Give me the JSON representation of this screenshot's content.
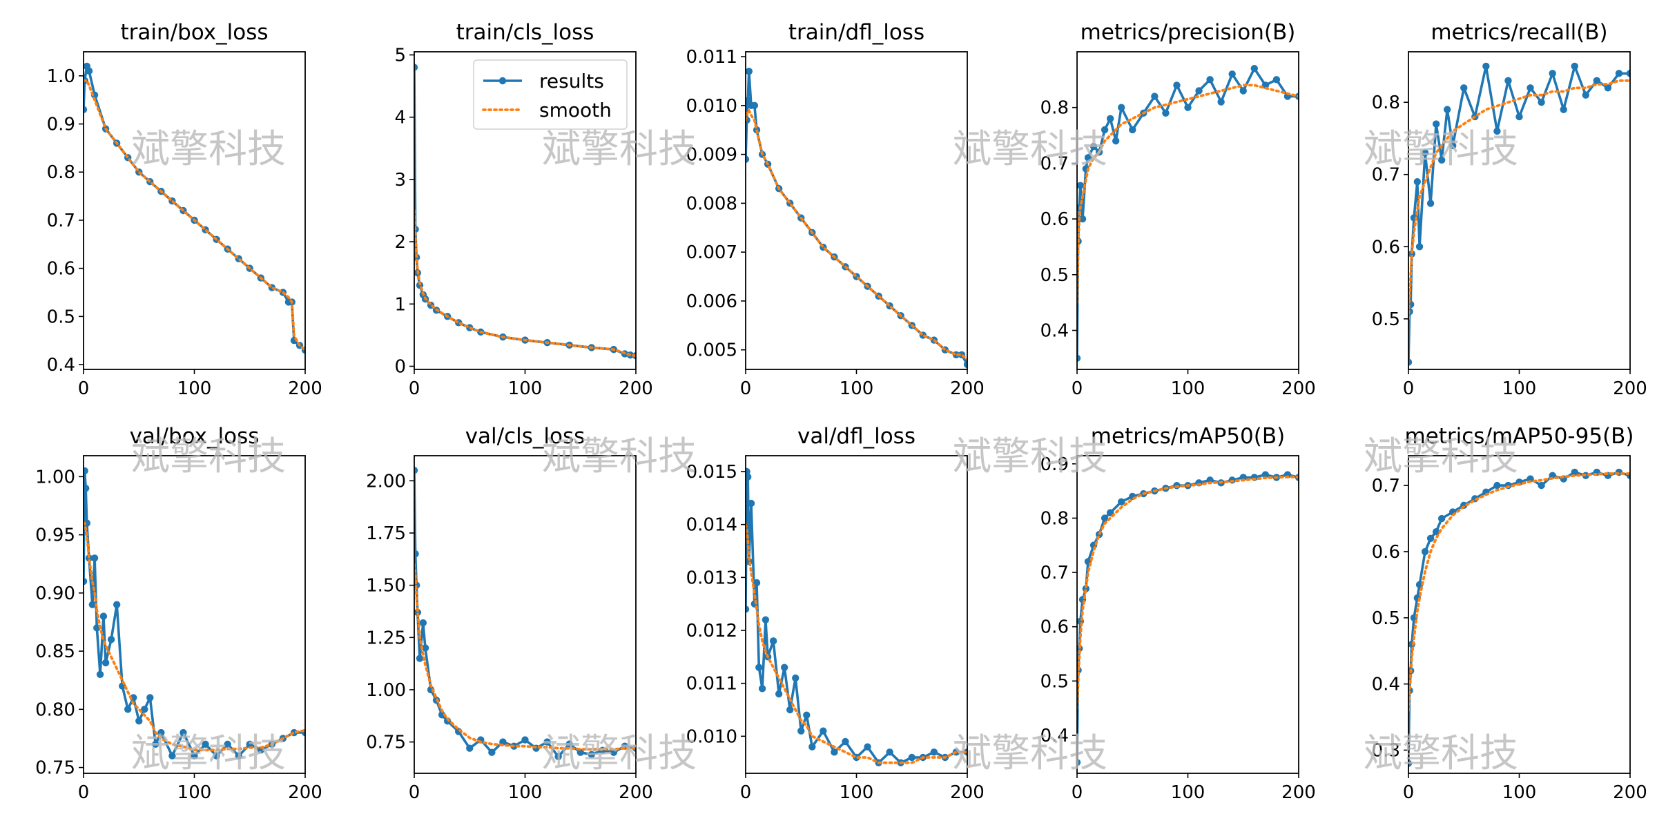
{
  "figure": {
    "background": "#ffffff",
    "results_color": "#1f77b4",
    "smooth_color": "#ff7f0e"
  },
  "legend": {
    "results_label": "results",
    "smooth_label": "smooth"
  },
  "watermark_text": "斌擎科技",
  "chart_data": [
    {
      "type": "line",
      "title": "train/box_loss",
      "xlim": [
        0,
        200
      ],
      "ylim": [
        0.39,
        1.05
      ],
      "xticks": [
        "0",
        "100",
        "200"
      ],
      "yticks": [
        "0.4",
        "0.5",
        "0.6",
        "0.7",
        "0.8",
        "0.9",
        "1.0"
      ],
      "ytick_values": [
        0.4,
        0.5,
        0.6,
        0.7,
        0.8,
        0.9,
        1.0
      ],
      "x": [
        0,
        1,
        3,
        5,
        10,
        20,
        30,
        40,
        50,
        60,
        70,
        80,
        90,
        100,
        110,
        120,
        130,
        140,
        150,
        160,
        170,
        180,
        185,
        188,
        190,
        195,
        200
      ],
      "results": [
        0.93,
        0.99,
        1.02,
        1.01,
        0.96,
        0.89,
        0.86,
        0.83,
        0.8,
        0.78,
        0.76,
        0.74,
        0.72,
        0.7,
        0.68,
        0.66,
        0.64,
        0.62,
        0.6,
        0.58,
        0.56,
        0.55,
        0.53,
        0.53,
        0.45,
        0.44,
        0.43
      ],
      "smooth": [
        0.99,
        0.99,
        0.99,
        0.98,
        0.95,
        0.89,
        0.86,
        0.83,
        0.8,
        0.78,
        0.76,
        0.74,
        0.72,
        0.7,
        0.68,
        0.66,
        0.64,
        0.62,
        0.6,
        0.58,
        0.56,
        0.55,
        0.54,
        0.53,
        0.46,
        0.44,
        0.43
      ]
    },
    {
      "type": "line",
      "title": "train/cls_loss",
      "xlim": [
        0,
        200
      ],
      "ylim": [
        -0.05,
        5.05
      ],
      "legend": true,
      "xticks": [
        "0",
        "100",
        "200"
      ],
      "yticks": [
        "0",
        "1",
        "2",
        "3",
        "4",
        "5"
      ],
      "ytick_values": [
        0,
        1,
        2,
        3,
        4,
        5
      ],
      "x": [
        0,
        1,
        2,
        3,
        5,
        8,
        10,
        15,
        20,
        30,
        40,
        50,
        60,
        80,
        100,
        120,
        140,
        160,
        180,
        190,
        195,
        200
      ],
      "results": [
        4.8,
        2.2,
        1.75,
        1.5,
        1.3,
        1.15,
        1.08,
        0.98,
        0.9,
        0.8,
        0.7,
        0.62,
        0.55,
        0.47,
        0.42,
        0.38,
        0.34,
        0.3,
        0.27,
        0.2,
        0.18,
        0.17
      ],
      "smooth": [
        2.5,
        2.1,
        1.8,
        1.55,
        1.33,
        1.17,
        1.09,
        0.99,
        0.91,
        0.8,
        0.7,
        0.62,
        0.55,
        0.47,
        0.42,
        0.38,
        0.34,
        0.3,
        0.27,
        0.21,
        0.18,
        0.17
      ]
    },
    {
      "type": "line",
      "title": "train/dfl_loss",
      "xlim": [
        0,
        200
      ],
      "ylim": [
        0.0046,
        0.0111
      ],
      "xticks": [
        "0",
        "100",
        "200"
      ],
      "yticks": [
        "0.005",
        "0.006",
        "0.007",
        "0.008",
        "0.009",
        "0.010",
        "0.011"
      ],
      "ytick_values": [
        0.005,
        0.006,
        0.007,
        0.008,
        0.009,
        0.01,
        0.011
      ],
      "x": [
        0,
        1,
        2,
        3,
        5,
        8,
        10,
        15,
        20,
        30,
        40,
        50,
        60,
        70,
        80,
        90,
        100,
        110,
        120,
        130,
        140,
        150,
        160,
        170,
        180,
        190,
        195,
        200
      ],
      "results": [
        0.0089,
        0.0097,
        0.0101,
        0.0107,
        0.01,
        0.01,
        0.0095,
        0.009,
        0.0088,
        0.0083,
        0.008,
        0.0077,
        0.0074,
        0.0071,
        0.0069,
        0.0067,
        0.0065,
        0.0063,
        0.0061,
        0.0059,
        0.0057,
        0.0055,
        0.0053,
        0.0052,
        0.005,
        0.0049,
        0.0049,
        0.0047
      ],
      "smooth": [
        0.0097,
        0.0098,
        0.0099,
        0.0099,
        0.0098,
        0.0097,
        0.0095,
        0.009,
        0.0088,
        0.0083,
        0.008,
        0.0077,
        0.0074,
        0.0071,
        0.0069,
        0.0067,
        0.0065,
        0.0063,
        0.0061,
        0.0059,
        0.0057,
        0.0055,
        0.0053,
        0.0052,
        0.005,
        0.0049,
        0.0049,
        0.0048
      ]
    },
    {
      "type": "line",
      "title": "metrics/precision(B)",
      "xlim": [
        0,
        200
      ],
      "ylim": [
        0.33,
        0.9
      ],
      "xticks": [
        "0",
        "100",
        "200"
      ],
      "yticks": [
        "0.4",
        "0.5",
        "0.6",
        "0.7",
        "0.8"
      ],
      "ytick_values": [
        0.4,
        0.5,
        0.6,
        0.7,
        0.8
      ],
      "x": [
        0,
        1,
        2,
        3,
        5,
        8,
        10,
        15,
        20,
        25,
        30,
        35,
        40,
        50,
        60,
        70,
        80,
        90,
        100,
        110,
        120,
        130,
        140,
        150,
        160,
        170,
        180,
        190,
        200
      ],
      "results": [
        0.35,
        0.56,
        0.62,
        0.66,
        0.6,
        0.69,
        0.71,
        0.73,
        0.72,
        0.76,
        0.78,
        0.74,
        0.8,
        0.76,
        0.79,
        0.82,
        0.79,
        0.84,
        0.8,
        0.83,
        0.85,
        0.81,
        0.86,
        0.83,
        0.87,
        0.84,
        0.85,
        0.82,
        0.82
      ],
      "smooth": [
        0.45,
        0.55,
        0.6,
        0.62,
        0.64,
        0.67,
        0.69,
        0.71,
        0.72,
        0.74,
        0.75,
        0.76,
        0.77,
        0.78,
        0.79,
        0.8,
        0.805,
        0.81,
        0.815,
        0.82,
        0.825,
        0.83,
        0.835,
        0.84,
        0.84,
        0.835,
        0.83,
        0.825,
        0.82
      ]
    },
    {
      "type": "line",
      "title": "metrics/recall(B)",
      "xlim": [
        0,
        200
      ],
      "ylim": [
        0.43,
        0.87
      ],
      "xticks": [
        "0",
        "100",
        "200"
      ],
      "yticks": [
        "0.5",
        "0.6",
        "0.7",
        "0.8"
      ],
      "ytick_values": [
        0.5,
        0.6,
        0.7,
        0.8
      ],
      "x": [
        0,
        1,
        2,
        3,
        5,
        8,
        10,
        15,
        20,
        25,
        30,
        35,
        40,
        50,
        60,
        70,
        80,
        90,
        100,
        110,
        120,
        130,
        140,
        150,
        160,
        170,
        180,
        190,
        200
      ],
      "results": [
        0.44,
        0.51,
        0.52,
        0.59,
        0.64,
        0.69,
        0.6,
        0.73,
        0.66,
        0.77,
        0.72,
        0.79,
        0.74,
        0.82,
        0.78,
        0.85,
        0.76,
        0.83,
        0.78,
        0.82,
        0.8,
        0.84,
        0.79,
        0.85,
        0.81,
        0.83,
        0.82,
        0.84,
        0.84
      ],
      "smooth": [
        0.5,
        0.53,
        0.56,
        0.59,
        0.62,
        0.65,
        0.67,
        0.69,
        0.71,
        0.73,
        0.74,
        0.75,
        0.76,
        0.77,
        0.78,
        0.79,
        0.795,
        0.8,
        0.805,
        0.81,
        0.81,
        0.815,
        0.815,
        0.82,
        0.82,
        0.825,
        0.825,
        0.83,
        0.83
      ]
    },
    {
      "type": "line",
      "title": "val/box_loss",
      "xlim": [
        0,
        200
      ],
      "ylim": [
        0.745,
        1.018
      ],
      "xticks": [
        "0",
        "100",
        "200"
      ],
      "yticks": [
        "0.75",
        "0.80",
        "0.85",
        "0.90",
        "0.95",
        "1.00"
      ],
      "ytick_values": [
        0.75,
        0.8,
        0.85,
        0.9,
        0.95,
        1.0
      ],
      "x": [
        0,
        1,
        2,
        3,
        5,
        8,
        10,
        12,
        15,
        18,
        20,
        25,
        30,
        35,
        40,
        45,
        50,
        55,
        60,
        65,
        70,
        80,
        90,
        100,
        110,
        120,
        130,
        140,
        150,
        160,
        170,
        180,
        190,
        200
      ],
      "results": [
        0.91,
        1.005,
        0.99,
        0.96,
        0.93,
        0.89,
        0.93,
        0.87,
        0.83,
        0.88,
        0.84,
        0.86,
        0.89,
        0.82,
        0.8,
        0.81,
        0.79,
        0.8,
        0.81,
        0.77,
        0.78,
        0.76,
        0.78,
        0.76,
        0.77,
        0.76,
        0.77,
        0.76,
        0.77,
        0.765,
        0.77,
        0.775,
        0.78,
        0.78
      ],
      "smooth": [
        0.96,
        0.96,
        0.955,
        0.95,
        0.93,
        0.91,
        0.9,
        0.885,
        0.87,
        0.86,
        0.855,
        0.845,
        0.835,
        0.825,
        0.815,
        0.805,
        0.8,
        0.795,
        0.79,
        0.78,
        0.775,
        0.77,
        0.768,
        0.765,
        0.765,
        0.765,
        0.766,
        0.766,
        0.767,
        0.767,
        0.77,
        0.775,
        0.78,
        0.782
      ]
    },
    {
      "type": "line",
      "title": "val/cls_loss",
      "xlim": [
        0,
        200
      ],
      "ylim": [
        0.6,
        2.12
      ],
      "xticks": [
        "0",
        "100",
        "200"
      ],
      "yticks": [
        "0.75",
        "1.00",
        "1.25",
        "1.50",
        "1.75",
        "2.00"
      ],
      "ytick_values": [
        0.75,
        1.0,
        1.25,
        1.5,
        1.75,
        2.0
      ],
      "x": [
        0,
        1,
        2,
        3,
        5,
        8,
        10,
        15,
        20,
        25,
        30,
        40,
        50,
        60,
        70,
        80,
        90,
        100,
        110,
        120,
        130,
        140,
        150,
        160,
        170,
        180,
        190,
        200
      ],
      "results": [
        2.05,
        1.65,
        1.5,
        1.37,
        1.15,
        1.32,
        1.2,
        1.0,
        0.95,
        0.88,
        0.85,
        0.8,
        0.72,
        0.76,
        0.7,
        0.75,
        0.73,
        0.76,
        0.72,
        0.75,
        0.68,
        0.74,
        0.7,
        0.69,
        0.71,
        0.7,
        0.73,
        0.72
      ],
      "smooth": [
        1.6,
        1.55,
        1.45,
        1.38,
        1.25,
        1.17,
        1.12,
        1.02,
        0.96,
        0.9,
        0.86,
        0.81,
        0.77,
        0.75,
        0.74,
        0.735,
        0.73,
        0.73,
        0.725,
        0.725,
        0.72,
        0.72,
        0.715,
        0.715,
        0.715,
        0.715,
        0.72,
        0.72
      ]
    },
    {
      "type": "line",
      "title": "val/dfl_loss",
      "xlim": [
        0,
        200
      ],
      "ylim": [
        0.0093,
        0.0153
      ],
      "xticks": [
        "0",
        "100",
        "200"
      ],
      "yticks": [
        "0.010",
        "0.011",
        "0.012",
        "0.013",
        "0.014",
        "0.015"
      ],
      "ytick_values": [
        0.01,
        0.011,
        0.012,
        0.013,
        0.014,
        0.015
      ],
      "x": [
        0,
        1,
        2,
        3,
        5,
        8,
        10,
        12,
        15,
        18,
        20,
        25,
        30,
        35,
        40,
        45,
        50,
        55,
        60,
        70,
        80,
        90,
        100,
        110,
        120,
        130,
        140,
        150,
        160,
        170,
        180,
        190,
        200
      ],
      "results": [
        0.0124,
        0.015,
        0.0149,
        0.0133,
        0.0144,
        0.0125,
        0.0129,
        0.0113,
        0.0109,
        0.0122,
        0.0115,
        0.0118,
        0.0108,
        0.0113,
        0.0105,
        0.0111,
        0.0101,
        0.0104,
        0.0098,
        0.0101,
        0.0097,
        0.0099,
        0.0096,
        0.0098,
        0.0095,
        0.0097,
        0.0095,
        0.0096,
        0.0096,
        0.0097,
        0.0096,
        0.0097,
        0.0097
      ],
      "smooth": [
        0.014,
        0.0139,
        0.0137,
        0.0134,
        0.0131,
        0.0127,
        0.0124,
        0.0121,
        0.0118,
        0.0116,
        0.0115,
        0.0113,
        0.0111,
        0.0109,
        0.0107,
        0.0105,
        0.0103,
        0.0102,
        0.01,
        0.0099,
        0.0098,
        0.0097,
        0.0096,
        0.0096,
        0.0095,
        0.0095,
        0.0095,
        0.0095,
        0.0096,
        0.0096,
        0.0096,
        0.0097,
        0.0097
      ]
    },
    {
      "type": "line",
      "title": "metrics/mAP50(B)",
      "xlim": [
        0,
        200
      ],
      "ylim": [
        0.33,
        0.915
      ],
      "xticks": [
        "0",
        "100",
        "200"
      ],
      "yticks": [
        "0.4",
        "0.5",
        "0.6",
        "0.7",
        "0.8",
        "0.9"
      ],
      "ytick_values": [
        0.4,
        0.5,
        0.6,
        0.7,
        0.8,
        0.9
      ],
      "x": [
        0,
        1,
        2,
        3,
        5,
        8,
        10,
        15,
        20,
        25,
        30,
        40,
        50,
        60,
        70,
        80,
        90,
        100,
        110,
        120,
        130,
        140,
        150,
        160,
        170,
        180,
        190,
        200
      ],
      "results": [
        0.35,
        0.52,
        0.56,
        0.61,
        0.65,
        0.67,
        0.72,
        0.75,
        0.77,
        0.8,
        0.81,
        0.83,
        0.84,
        0.845,
        0.85,
        0.855,
        0.86,
        0.86,
        0.865,
        0.87,
        0.865,
        0.87,
        0.875,
        0.875,
        0.88,
        0.875,
        0.88,
        0.875
      ],
      "smooth": [
        0.45,
        0.5,
        0.54,
        0.58,
        0.63,
        0.67,
        0.7,
        0.74,
        0.77,
        0.79,
        0.8,
        0.82,
        0.835,
        0.845,
        0.85,
        0.855,
        0.858,
        0.86,
        0.862,
        0.865,
        0.866,
        0.868,
        0.87,
        0.872,
        0.874,
        0.875,
        0.876,
        0.876
      ]
    },
    {
      "type": "line",
      "title": "metrics/mAP50-95(B)",
      "xlim": [
        0,
        200
      ],
      "ylim": [
        0.265,
        0.745
      ],
      "xticks": [
        "0",
        "100",
        "200"
      ],
      "yticks": [
        "0.3",
        "0.4",
        "0.5",
        "0.6",
        "0.7"
      ],
      "ytick_values": [
        0.3,
        0.4,
        0.5,
        0.6,
        0.7
      ],
      "x": [
        0,
        1,
        2,
        3,
        5,
        8,
        10,
        15,
        20,
        25,
        30,
        40,
        50,
        60,
        70,
        80,
        90,
        100,
        110,
        120,
        130,
        140,
        150,
        160,
        170,
        180,
        190,
        200
      ],
      "results": [
        0.28,
        0.39,
        0.42,
        0.46,
        0.5,
        0.53,
        0.55,
        0.6,
        0.62,
        0.63,
        0.65,
        0.66,
        0.67,
        0.68,
        0.69,
        0.7,
        0.7,
        0.705,
        0.71,
        0.7,
        0.715,
        0.71,
        0.72,
        0.715,
        0.72,
        0.715,
        0.72,
        0.715
      ],
      "smooth": [
        0.36,
        0.39,
        0.41,
        0.44,
        0.47,
        0.51,
        0.53,
        0.57,
        0.6,
        0.62,
        0.635,
        0.655,
        0.668,
        0.678,
        0.686,
        0.693,
        0.698,
        0.702,
        0.706,
        0.708,
        0.711,
        0.713,
        0.715,
        0.716,
        0.717,
        0.718,
        0.718,
        0.718
      ]
    }
  ]
}
